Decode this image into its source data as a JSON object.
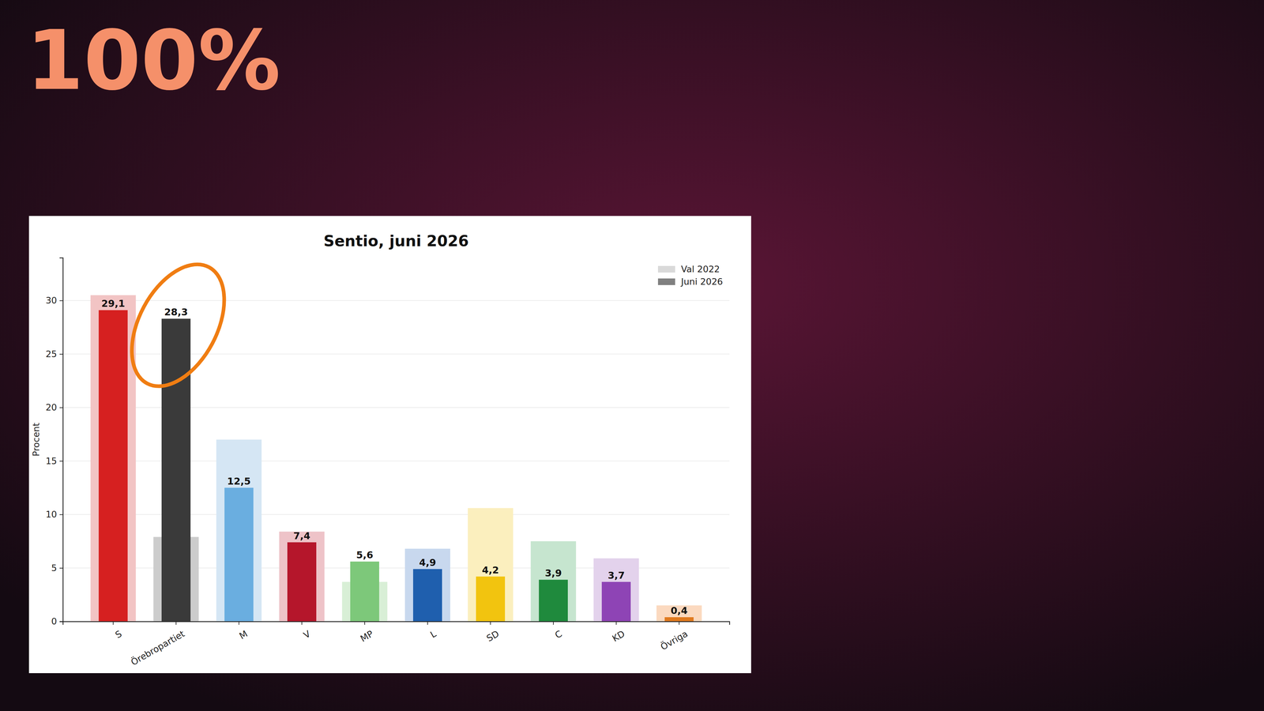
{
  "logo": "100%",
  "chart_data": {
    "type": "bar",
    "title": "Sentio, juni 2026",
    "y_label": "Procent",
    "categories": [
      "S",
      "Örebropartiet",
      "M",
      "V",
      "MP",
      "L",
      "SD",
      "C",
      "KD",
      "Övriga"
    ],
    "series": [
      {
        "name": "Val 2022",
        "color": "#d9d9d9",
        "colors": [
          "#f2c4c4",
          "#cccccc",
          "#d5e6f4",
          "#eec3c8",
          "#d8efd6",
          "#c8d8ee",
          "#fbefbe",
          "#c6e5cf",
          "#e3d2ec",
          "#fbd9bf"
        ],
        "values": [
          30.5,
          7.9,
          17.0,
          8.4,
          3.7,
          6.8,
          10.6,
          7.5,
          5.9,
          1.5
        ]
      },
      {
        "name": "Juni 2026",
        "color": "#808080",
        "colors": [
          "#d62020",
          "#3a3a3a",
          "#6aaee0",
          "#b5162b",
          "#7dc87a",
          "#1f5fae",
          "#f2c40f",
          "#1f8a3d",
          "#8e44b5",
          "#e07a20"
        ],
        "values": [
          29.1,
          28.3,
          12.5,
          7.4,
          5.6,
          4.9,
          4.2,
          3.9,
          3.7,
          0.4
        ],
        "value_labels": [
          "29,1",
          "28,3",
          "12,5",
          "7,4",
          "5,6",
          "4,9",
          "4,2",
          "3,9",
          "3,7",
          "0,4"
        ],
        "data_labels": true
      }
    ],
    "ylim": [
      0,
      34
    ],
    "yticks": [
      0,
      5,
      10,
      15,
      20,
      25,
      30
    ],
    "grid": true,
    "legend": "top-right"
  }
}
